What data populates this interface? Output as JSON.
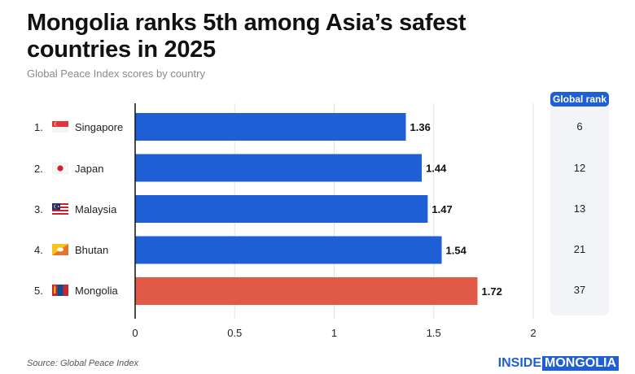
{
  "title": "Mongolia ranks 5th among Asia’s safest countries in 2025",
  "subtitle": "Global Peace Index scores by country",
  "source": "Source: Global Peace Index",
  "brand": {
    "part1": "INSIDE",
    "part2": "MONGOLIA"
  },
  "rank_header": "Global rank",
  "colors": {
    "bar": "#1f5fd6",
    "highlight": "#e05a47"
  },
  "rows": [
    {
      "rank": "1.",
      "country": "Singapore",
      "flag": "singapore-flag-icon",
      "score_label": "1.36",
      "global_rank": "6"
    },
    {
      "rank": "2.",
      "country": "Japan",
      "flag": "japan-flag-icon",
      "score_label": "1.44",
      "global_rank": "12"
    },
    {
      "rank": "3.",
      "country": "Malaysia",
      "flag": "malaysia-flag-icon",
      "score_label": "1.47",
      "global_rank": "13"
    },
    {
      "rank": "4.",
      "country": "Bhutan",
      "flag": "bhutan-flag-icon",
      "score_label": "1.54",
      "global_rank": "21"
    },
    {
      "rank": "5.",
      "country": "Mongolia",
      "flag": "mongolia-flag-icon",
      "score_label": "1.72",
      "global_rank": "37"
    }
  ],
  "chart_data": {
    "type": "bar",
    "orientation": "horizontal",
    "categories": [
      "Singapore",
      "Japan",
      "Malaysia",
      "Bhutan",
      "Mongolia"
    ],
    "values": [
      1.36,
      1.44,
      1.47,
      1.54,
      1.72
    ],
    "highlight": "Mongolia",
    "title": "Mongolia ranks 5th among Asia’s safest countries in 2025",
    "subtitle": "Global Peace Index scores by country",
    "xlabel": "",
    "ylabel": "",
    "xlim": [
      0,
      2
    ],
    "xticks": [
      0,
      0.5,
      1,
      1.5,
      2
    ],
    "xtick_labels": [
      "0",
      "0.5",
      "1",
      "1.5",
      "2"
    ],
    "grid": true
  }
}
